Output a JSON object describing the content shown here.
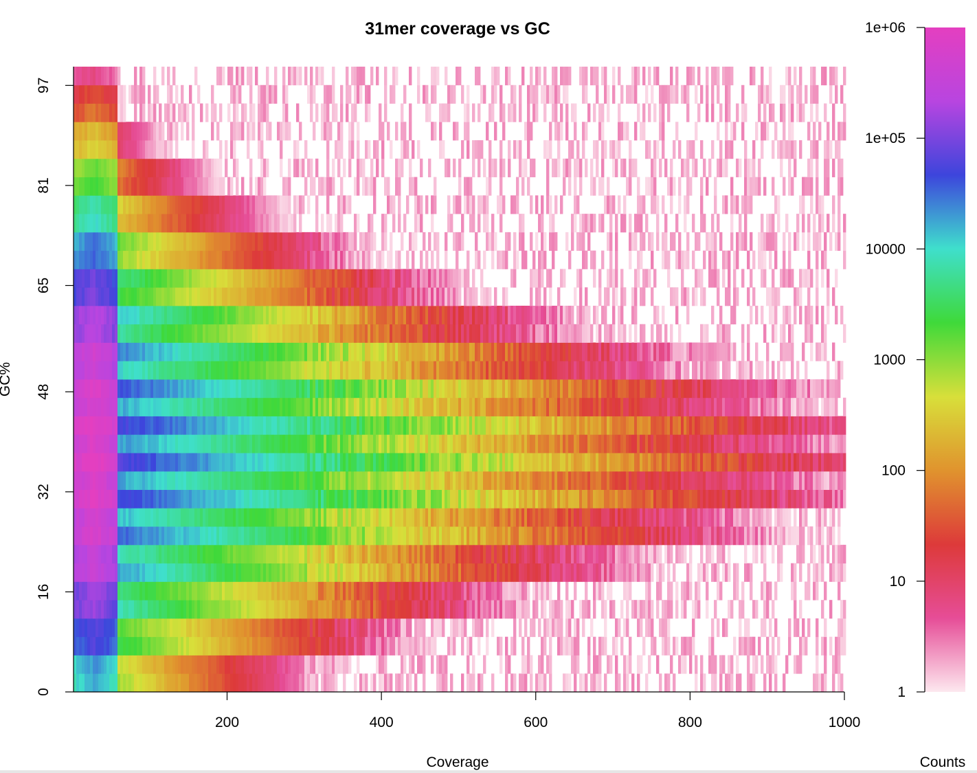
{
  "chart_data": {
    "type": "heatmap",
    "title": "31mer coverage vs GC",
    "xlabel": "Coverage",
    "ylabel": "GC%",
    "xlim": [
      1,
      1000
    ],
    "ylim": [
      0,
      100
    ],
    "x_ticks": [
      200,
      400,
      600,
      800,
      1000
    ],
    "y_ticks": [
      0,
      16,
      32,
      48,
      65,
      81,
      97
    ],
    "y_tick_labels": [
      "0",
      "16",
      "32",
      "48",
      "65",
      "81",
      "97"
    ],
    "gc_row_count": 34,
    "colorbar": {
      "label": "Counts",
      "scale": "log",
      "range": [
        1,
        1000000
      ],
      "ticks": [
        "1",
        "10",
        "100",
        "1000",
        "10000",
        "1e+05",
        "1e+06"
      ],
      "colors": [
        "#fde8ef",
        "#e64d97",
        "#dd3a3a",
        "#e0932e",
        "#d8df3a",
        "#3fd93a",
        "#3fdfcc",
        "#3d45dc",
        "#b845e0",
        "#e43fc0"
      ]
    },
    "grid": false,
    "legend_placement": "right"
  }
}
